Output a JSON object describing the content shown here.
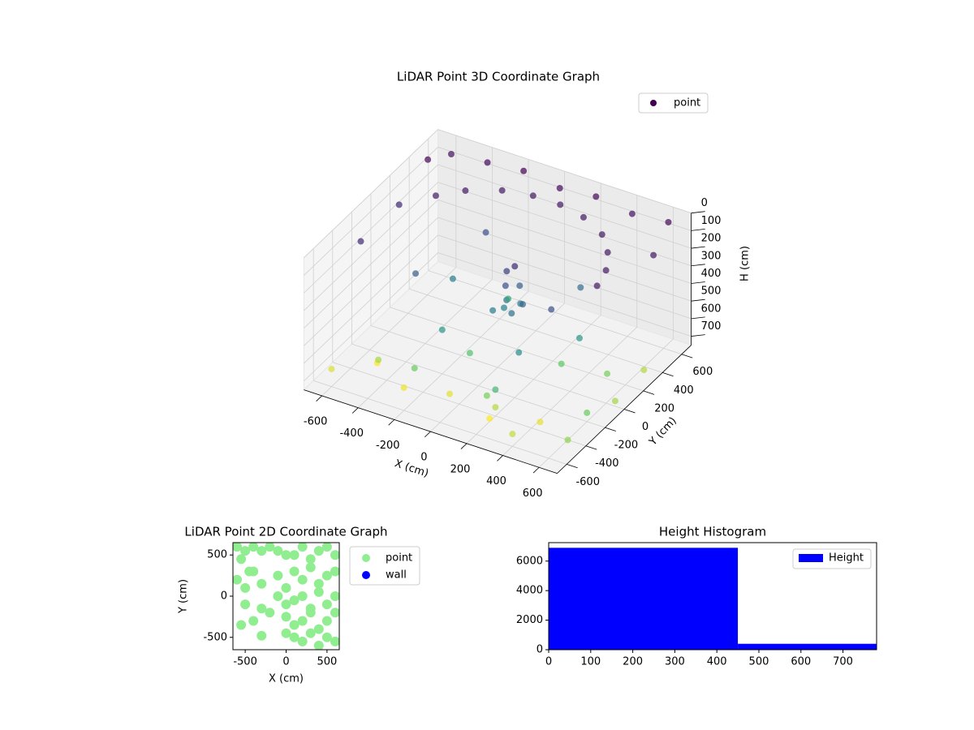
{
  "chart_data": [
    {
      "type": "scatter3d",
      "title": "LiDAR Point 3D Coordinate Graph",
      "xlabel": "X (cm)",
      "ylabel": "Y (cm)",
      "zlabel": "H (cm)",
      "xlim": [
        -700,
        700
      ],
      "ylim": [
        -700,
        700
      ],
      "zlim": [
        0,
        750
      ],
      "z_inverted": true,
      "xticks": [
        -600,
        -400,
        -200,
        0,
        200,
        400,
        600
      ],
      "yticks": [
        -600,
        -400,
        -200,
        0,
        200,
        400,
        600
      ],
      "zticks": [
        0,
        100,
        200,
        300,
        400,
        500,
        600,
        700
      ],
      "legend": "upper right",
      "colormap": "viridis",
      "series": [
        {
          "name": "point",
          "color": "#440154",
          "x": [
            -500,
            -400,
            -250,
            -100,
            50,
            200,
            350,
            450,
            520,
            550,
            50,
            100,
            0,
            150,
            80,
            20,
            120,
            60,
            40,
            90,
            -300,
            300,
            -200,
            250,
            400,
            -100,
            200,
            -400,
            350,
            -250,
            -650,
            -600,
            -400,
            -200,
            0,
            200,
            400,
            600,
            650,
            -650,
            -650,
            -600,
            -400,
            -200,
            0,
            200,
            400,
            600,
            600,
            500,
            300,
            -500,
            -300,
            100,
            -100,
            300,
            500,
            650,
            650
          ],
          "y": [
            300,
            420,
            520,
            560,
            560,
            520,
            430,
            300,
            150,
            0,
            0,
            50,
            -50,
            -20,
            80,
            30,
            -80,
            -30,
            20,
            10,
            100,
            300,
            -200,
            -250,
            100,
            300,
            -400,
            -100,
            -100,
            350,
            500,
            650,
            650,
            650,
            650,
            650,
            650,
            650,
            400,
            200,
            -200,
            -600,
            -500,
            -600,
            -500,
            -400,
            -600,
            -400,
            -200,
            200,
            -650,
            -300,
            -300,
            -300,
            -100,
            100,
            -500,
            0,
            300
          ],
          "z": [
            100,
            100,
            100,
            100,
            100,
            100,
            100,
            100,
            100,
            100,
            350,
            380,
            400,
            330,
            300,
            420,
            360,
            250,
            200,
            150,
            400,
            350,
            500,
            450,
            500,
            550,
            600,
            300,
            250,
            250,
            50,
            80,
            60,
            40,
            70,
            50,
            80,
            60,
            100,
            150,
            150,
            850,
            900,
            880,
            860,
            800,
            820,
            750,
            700,
            720,
            900,
            780,
            700,
            720,
            650,
            680,
            870,
            780,
            800
          ]
        }
      ]
    },
    {
      "type": "scatter",
      "title": "LiDAR Point 2D Coordinate Graph",
      "xlabel": "X (cm)",
      "ylabel": "Y (cm)",
      "xlim": [
        -650,
        650
      ],
      "ylim": [
        -650,
        650
      ],
      "xticks": [
        -500,
        0,
        500
      ],
      "yticks": [
        -500,
        0,
        500
      ],
      "legend": "outside right",
      "series": [
        {
          "name": "point",
          "color": "lightgreen",
          "x": [
            -600,
            -550,
            -500,
            -450,
            -400,
            -300,
            -200,
            -100,
            0,
            100,
            200,
            300,
            400,
            500,
            600,
            -600,
            -500,
            -400,
            -300,
            -100,
            0,
            100,
            200,
            300,
            400,
            500,
            600,
            -500,
            -300,
            -100,
            0,
            100,
            200,
            300,
            400,
            500,
            600,
            -400,
            -200,
            0,
            100,
            200,
            300,
            400,
            500,
            600,
            0,
            100,
            200,
            300,
            400,
            500,
            -550,
            -300,
            600
          ],
          "y": [
            600,
            450,
            550,
            300,
            600,
            550,
            600,
            550,
            500,
            500,
            600,
            450,
            550,
            600,
            500,
            200,
            100,
            300,
            150,
            250,
            100,
            300,
            200,
            350,
            150,
            250,
            300,
            -100,
            -150,
            0,
            -100,
            -50,
            0,
            -150,
            50,
            -100,
            0,
            -300,
            -200,
            -250,
            -350,
            -300,
            -200,
            -400,
            -300,
            -200,
            -450,
            -500,
            -550,
            -450,
            -600,
            -500,
            -350,
            -480,
            -550
          ]
        },
        {
          "name": "wall",
          "color": "blue",
          "x": [],
          "y": []
        }
      ]
    },
    {
      "type": "histogram",
      "title": "Height Histogram",
      "bins": [
        0,
        450,
        780
      ],
      "series": [
        {
          "name": "Height",
          "color": "blue",
          "values": [
            6900,
            400
          ]
        }
      ],
      "xlim": [
        0,
        780
      ],
      "ylim": [
        0,
        7250
      ],
      "xticks": [
        0,
        100,
        200,
        300,
        400,
        500,
        600,
        700
      ],
      "yticks": [
        0,
        2000,
        4000,
        6000
      ],
      "legend": "upper right"
    }
  ]
}
